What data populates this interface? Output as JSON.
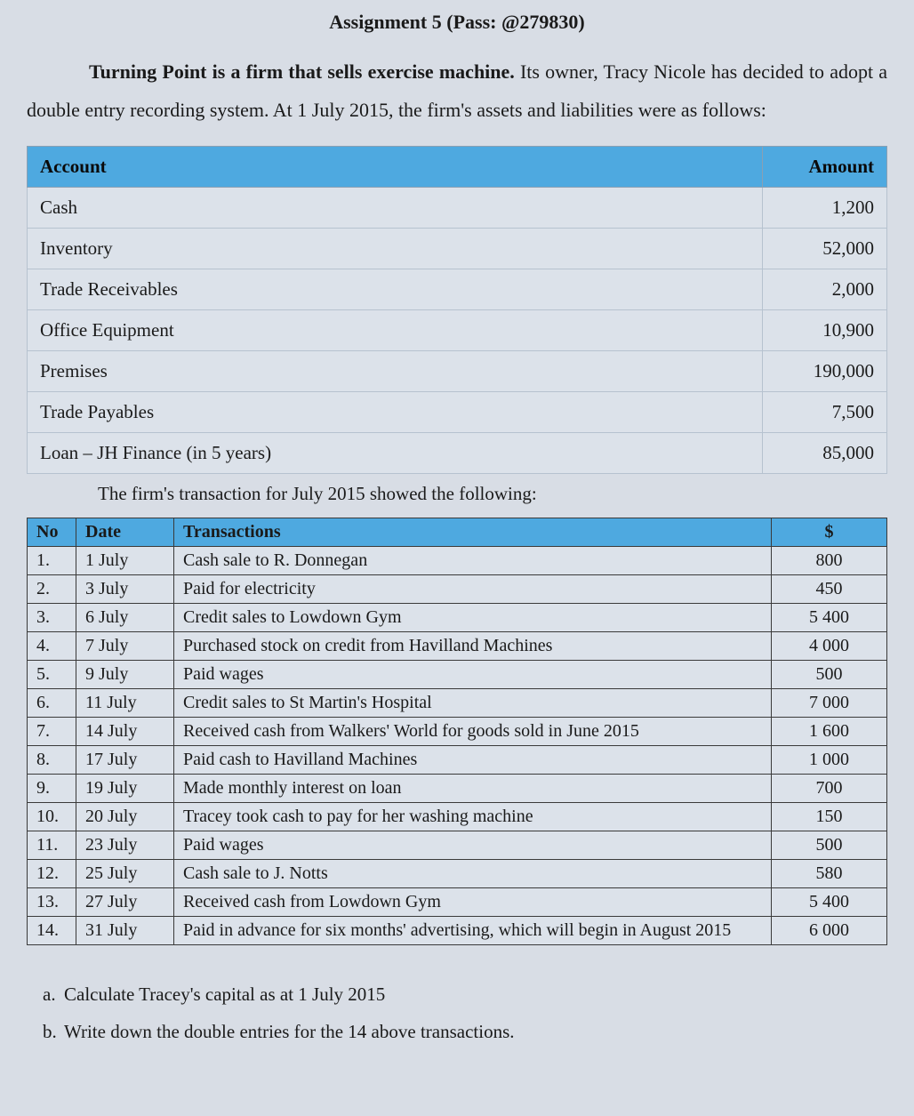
{
  "title": "Assignment 5 (Pass: @279830)",
  "intro": {
    "lead_bold": "Turning Point is a firm that sells exercise machine.",
    "rest": " Its owner, Tracy Nicole has decided to adopt a double entry recording system. At 1 July 2015, the firm's assets and liabilities were as follows:"
  },
  "accounts_table": {
    "columns": [
      "Account",
      "Amount"
    ],
    "header_bg": "#4ea9e0",
    "border_color": "#b6c2cf",
    "rows": [
      {
        "account": "Cash",
        "amount": "1,200"
      },
      {
        "account": "Inventory",
        "amount": "52,000"
      },
      {
        "account": "Trade Receivables",
        "amount": "2,000"
      },
      {
        "account": "Office Equipment",
        "amount": "10,900"
      },
      {
        "account": "Premises",
        "amount": "190,000"
      },
      {
        "account": "Trade Payables",
        "amount": "7,500"
      },
      {
        "account": "Loan – JH Finance (in 5 years)",
        "amount": "85,000"
      }
    ]
  },
  "midline": "The firm's transaction for July 2015 showed the following:",
  "tx_table": {
    "columns": [
      "No",
      "Date",
      "Transactions",
      "$"
    ],
    "header_bg": "#4ea9e0",
    "border_color": "#3a3a3a",
    "rows": [
      {
        "no": "1.",
        "date": "1 July",
        "desc": "Cash sale to R. Donnegan",
        "amt": "800"
      },
      {
        "no": "2.",
        "date": "3 July",
        "desc": "Paid for electricity",
        "amt": "450"
      },
      {
        "no": "3.",
        "date": "6 July",
        "desc": "Credit sales to Lowdown Gym",
        "amt": "5 400"
      },
      {
        "no": "4.",
        "date": "7 July",
        "desc": "Purchased stock on credit from Havilland Machines",
        "amt": "4 000"
      },
      {
        "no": "5.",
        "date": "9 July",
        "desc": "Paid wages",
        "amt": "500"
      },
      {
        "no": "6.",
        "date": "11 July",
        "desc": "Credit sales to St Martin's Hospital",
        "amt": "7 000"
      },
      {
        "no": "7.",
        "date": "14 July",
        "desc": "Received cash from Walkers' World for goods sold in June 2015",
        "amt": "1 600"
      },
      {
        "no": "8.",
        "date": "17 July",
        "desc": "Paid cash to Havilland Machines",
        "amt": "1 000"
      },
      {
        "no": "9.",
        "date": "19 July",
        "desc": "Made monthly interest on loan",
        "amt": "700"
      },
      {
        "no": "10.",
        "date": "20 July",
        "desc": "Tracey took cash to pay for her washing machine",
        "amt": "150"
      },
      {
        "no": "11.",
        "date": "23 July",
        "desc": "Paid wages",
        "amt": "500"
      },
      {
        "no": "12.",
        "date": "25 July",
        "desc": "Cash sale to J. Notts",
        "amt": "580"
      },
      {
        "no": "13.",
        "date": "27 July",
        "desc": "Received cash from Lowdown Gym",
        "amt": "5 400"
      },
      {
        "no": "14.",
        "date": "31 July",
        "desc": "Paid in advance for six months' advertising, which will begin in August 2015",
        "amt": "6 000"
      }
    ]
  },
  "questions": {
    "a": {
      "marker": "a.",
      "text": "Calculate Tracey's capital as at 1 July 2015"
    },
    "b": {
      "marker": "b.",
      "text": "Write down the double entries for the 14 above transactions."
    }
  },
  "colors": {
    "page_bg": "#d8dde5",
    "text": "#1a1a1a"
  },
  "fonts": {
    "family": "Times New Roman",
    "title_size_pt": 17,
    "body_size_pt": 16
  }
}
